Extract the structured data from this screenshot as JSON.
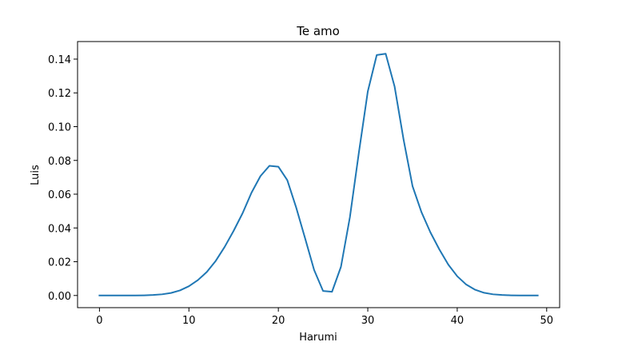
{
  "chart_data": {
    "type": "line",
    "title": "Te amo",
    "xlabel": "Harumi",
    "ylabel": "Luis",
    "xlim": [
      -2.45,
      51.45
    ],
    "ylim": [
      -0.0072,
      0.1504
    ],
    "xticks": [
      0,
      10,
      20,
      30,
      40,
      50
    ],
    "xtick_labels": [
      "0",
      "10",
      "20",
      "30",
      "40",
      "50"
    ],
    "yticks": [
      0.0,
      0.02,
      0.04,
      0.06,
      0.08,
      0.1,
      0.12,
      0.14
    ],
    "ytick_labels": [
      "0.00",
      "0.02",
      "0.04",
      "0.06",
      "0.08",
      "0.10",
      "0.12",
      "0.14"
    ],
    "grid": false,
    "color": "#1f77b4",
    "series": [
      {
        "x": [
          0,
          1,
          2,
          3,
          4,
          5,
          6,
          7,
          8,
          9,
          10,
          11,
          12,
          13,
          14,
          15,
          16,
          17,
          18,
          19,
          20,
          21,
          22,
          23,
          24,
          25,
          26,
          27,
          28,
          29,
          30,
          31,
          32,
          33,
          34,
          35,
          36,
          37,
          38,
          39,
          40,
          41,
          42,
          43,
          44,
          45,
          46,
          47,
          48,
          49
        ],
        "y": [
          0.0,
          0.0,
          0.0,
          0.0,
          0.0,
          0.0001,
          0.0003,
          0.0007,
          0.0015,
          0.003,
          0.0055,
          0.0091,
          0.0139,
          0.0205,
          0.0288,
          0.0383,
          0.0487,
          0.0609,
          0.0707,
          0.0768,
          0.0763,
          0.0683,
          0.052,
          0.0337,
          0.0151,
          0.0027,
          0.0022,
          0.017,
          0.0464,
          0.0845,
          0.1208,
          0.1424,
          0.1432,
          0.1237,
          0.0924,
          0.0648,
          0.0494,
          0.0374,
          0.0273,
          0.0183,
          0.0114,
          0.0065,
          0.0034,
          0.0016,
          0.0007,
          0.0003,
          0.0001,
          0.0,
          0.0,
          0.0
        ]
      }
    ]
  }
}
